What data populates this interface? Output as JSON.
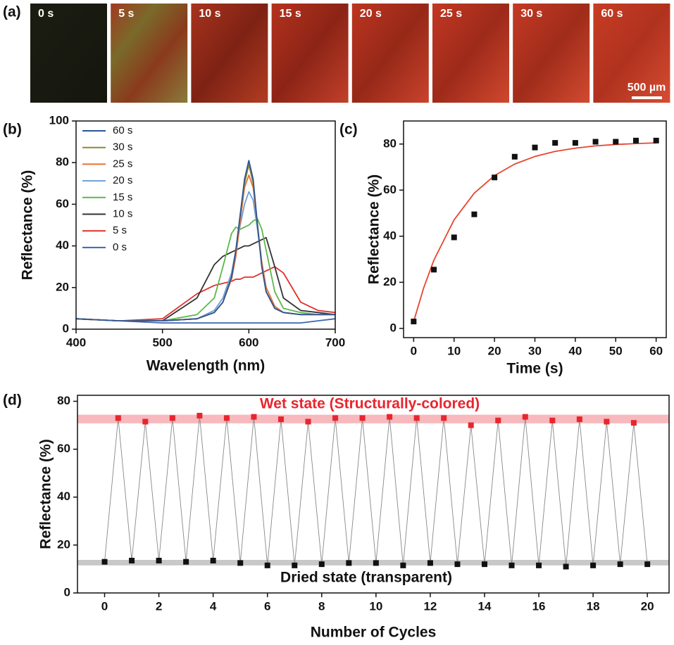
{
  "panel_a": {
    "label": "(a)",
    "frames": [
      "0 s",
      "5 s",
      "10 s",
      "15 s",
      "20 s",
      "25 s",
      "30 s",
      "60 s"
    ],
    "scale_bar": "500 µm"
  },
  "chart_data": [
    {
      "type": "line",
      "panel_label": "(b)",
      "xlabel": "Wavelength (nm)",
      "ylabel": "Reflectance (%)",
      "xlim": [
        400,
        700
      ],
      "ylim": [
        0,
        100
      ],
      "xticks": [
        400,
        500,
        600,
        700
      ],
      "yticks": [
        0,
        20,
        40,
        60,
        80,
        100
      ],
      "legend": "upper left",
      "x": [
        400,
        450,
        500,
        540,
        560,
        570,
        580,
        585,
        590,
        595,
        600,
        605,
        610,
        615,
        620,
        630,
        640,
        660,
        680,
        700
      ],
      "series": [
        {
          "name": "60 s",
          "color": "#2f5597",
          "values": [
            5,
            4,
            4,
            5,
            8,
            13,
            25,
            38,
            55,
            72,
            81,
            72,
            50,
            30,
            18,
            10,
            8,
            7,
            7,
            7
          ]
        },
        {
          "name": "30 s",
          "color": "#8c8c2c",
          "values": [
            5,
            4,
            4,
            5,
            8,
            13,
            25,
            38,
            55,
            70,
            79,
            70,
            50,
            30,
            18,
            10,
            8,
            7,
            7,
            7
          ]
        },
        {
          "name": "25 s",
          "color": "#e97132",
          "values": [
            5,
            4,
            4,
            5,
            8,
            13,
            24,
            35,
            52,
            68,
            74,
            68,
            50,
            32,
            20,
            11,
            8,
            7,
            7,
            7
          ]
        },
        {
          "name": "20 s",
          "color": "#6e9fd8",
          "values": [
            5,
            4,
            4,
            5,
            9,
            15,
            27,
            38,
            50,
            60,
            66,
            62,
            48,
            32,
            20,
            11,
            8,
            7,
            7,
            7
          ]
        },
        {
          "name": "15 s",
          "color": "#5cb84a",
          "values": [
            5,
            4,
            4,
            7,
            15,
            30,
            46,
            49,
            48,
            49,
            50,
            52,
            53,
            48,
            38,
            18,
            10,
            8,
            7,
            7
          ]
        },
        {
          "name": "10 s",
          "color": "#333333",
          "values": [
            5,
            4,
            4,
            15,
            31,
            35,
            37,
            38,
            39,
            40,
            40,
            41,
            42,
            43,
            44,
            30,
            15,
            9,
            8,
            7
          ]
        },
        {
          "name": "5 s",
          "color": "#e0302a",
          "values": [
            5,
            4,
            5,
            17,
            21,
            22,
            23,
            24,
            24,
            25,
            25,
            25,
            26,
            27,
            28,
            30,
            27,
            13,
            9,
            8
          ]
        },
        {
          "name": "0 s",
          "color": "#3d66b0",
          "values": [
            5,
            4,
            3,
            3,
            3,
            3,
            3,
            3,
            3,
            3,
            3,
            3,
            3,
            3,
            3,
            3,
            3,
            3,
            4,
            5
          ]
        }
      ]
    },
    {
      "type": "scatter",
      "panel_label": "(c)",
      "xlabel": "Time (s)",
      "ylabel": "Reflectance (%)",
      "xlim": [
        -2.5,
        62.5
      ],
      "ylim": [
        -4,
        90
      ],
      "xticks": [
        0,
        10,
        20,
        30,
        40,
        50,
        60
      ],
      "yticks": [
        0,
        20,
        40,
        60,
        80
      ],
      "series": [
        {
          "style": "line",
          "color": "#e8452e",
          "x": [
            0,
            2.5,
            5,
            10,
            15,
            20,
            25,
            30,
            35,
            40,
            45,
            50,
            55,
            60
          ],
          "values": [
            3,
            17.7,
            29.6,
            47.1,
            58.7,
            66.3,
            71.3,
            74.6,
            76.8,
            78.2,
            79.2,
            79.8,
            80.2,
            80.5
          ]
        },
        {
          "style": "markers",
          "color": "#111111",
          "x": [
            0,
            5,
            10,
            15,
            20,
            25,
            30,
            35,
            40,
            45,
            50,
            55,
            60
          ],
          "values": [
            3,
            25.5,
            39.5,
            49.5,
            65.5,
            74.5,
            78.5,
            80.5,
            80.5,
            81,
            81,
            81.5,
            81.5
          ]
        }
      ]
    },
    {
      "type": "scatter",
      "panel_label": "(d)",
      "xlabel": "Number of Cycles",
      "ylabel": "Reflectance (%)",
      "xlim": [
        -1,
        20.8
      ],
      "ylim": [
        0,
        82.5
      ],
      "xticks": [
        0,
        2,
        4,
        6,
        8,
        10,
        12,
        14,
        16,
        18,
        20
      ],
      "yticks": [
        0,
        20,
        40,
        60,
        80
      ],
      "connect": true,
      "connect_color": "#888888",
      "bands": [
        {
          "range": [
            70.8,
            74.4
          ],
          "color": "#f7b9bd"
        },
        {
          "range": [
            11.5,
            13.8
          ],
          "color": "#c8c8c8"
        }
      ],
      "annotations": [
        {
          "text": "Wet state (Structurally-colored)",
          "color": "#e8252e"
        },
        {
          "text": "Dried state (transparent)",
          "color": "#111111"
        }
      ],
      "series": [
        {
          "style": "markers",
          "color": "#111111",
          "x": [
            0,
            1,
            2,
            3,
            4,
            5,
            6,
            7,
            8,
            9,
            10,
            11,
            12,
            13,
            14,
            15,
            16,
            17,
            18,
            19,
            20
          ],
          "values": [
            13,
            13.5,
            13.5,
            13,
            13.5,
            12.5,
            11.5,
            11.5,
            12,
            12.5,
            12.5,
            11.5,
            12.5,
            12,
            12,
            11.5,
            11.5,
            11,
            11.5,
            12,
            12
          ]
        },
        {
          "style": "markers",
          "color": "#e8252e",
          "x": [
            0.5,
            1.5,
            2.5,
            3.5,
            4.5,
            5.5,
            6.5,
            7.5,
            8.5,
            9.5,
            10.5,
            11.5,
            12.5,
            13.5,
            14.5,
            15.5,
            16.5,
            17.5,
            18.5,
            19.5
          ],
          "values": [
            73,
            71.5,
            73,
            74,
            73,
            73.5,
            72.5,
            71.5,
            73,
            73,
            73.5,
            73,
            73,
            70,
            72,
            73.5,
            72,
            72.5,
            71.5,
            71
          ]
        }
      ]
    }
  ]
}
